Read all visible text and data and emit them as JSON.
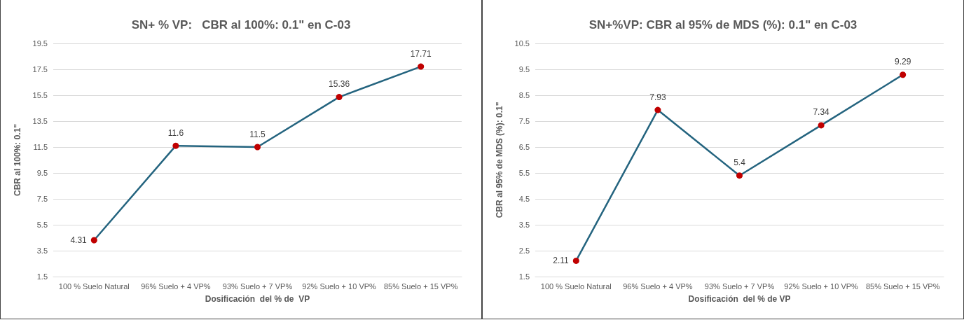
{
  "chart_data": [
    {
      "type": "line",
      "title": "SN+ % VP:   CBR al 100%: 0.1\" en C-03",
      "xlabel": "Dosificación  del % de  VP",
      "ylabel": "CBR al 100%: 0.1\"",
      "categories": [
        "100 % Suelo Natural",
        "96% Suelo + 4 VP%",
        "93% Suelo + 7 VP%",
        "92% Suelo + 10 VP%",
        "85% Suelo + 15 VP%"
      ],
      "series": [
        {
          "color": "#24647f",
          "values": [
            4.31,
            11.6,
            11.5,
            15.36,
            17.71
          ]
        }
      ],
      "ylim": [
        1.5,
        19.5
      ],
      "yticks": [
        1.5,
        3.5,
        5.5,
        7.5,
        9.5,
        11.5,
        13.5,
        15.5,
        17.5,
        19.5
      ],
      "grid": "y",
      "marker": "circle",
      "data_labels": true
    },
    {
      "type": "line",
      "title": "SN+%VP: CBR al 95% de MDS (%): 0.1\" en C-03",
      "xlabel": "Dosificación  del % de VP",
      "ylabel": "CBR al 95% de MDS (%): 0.1\"",
      "categories": [
        "100 % Suelo Natural",
        "96% Suelo + 4 VP%",
        "93% Suelo + 7 VP%",
        "92% Suelo + 10 VP%",
        "85% Suelo + 15 VP%"
      ],
      "series": [
        {
          "color": "#24647f",
          "values": [
            2.11,
            7.93,
            5.4,
            7.34,
            9.29
          ]
        }
      ],
      "ylim": [
        1.5,
        10.5
      ],
      "yticks": [
        1.5,
        2.5,
        3.5,
        4.5,
        5.5,
        6.5,
        7.5,
        8.5,
        9.5,
        10.5
      ],
      "grid": "y",
      "marker": "circle",
      "data_labels": true
    }
  ]
}
